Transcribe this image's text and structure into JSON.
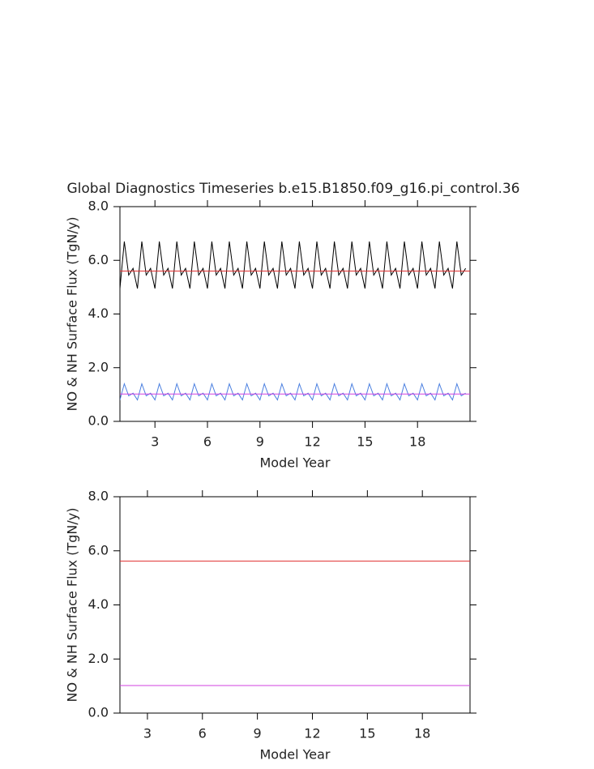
{
  "chart_data": [
    {
      "type": "line",
      "title": "Global Diagnostics Timeseries b.e15.B1850.f09_g16.pi_control.36",
      "x_label": "Model Year",
      "y_label": "NO & NH Surface Flux (TgN/y)",
      "xlim": [
        1,
        21
      ],
      "xticks": [
        3,
        6,
        9,
        12,
        15,
        18
      ],
      "ylim": [
        0,
        8
      ],
      "yticks": [
        {
          "value": 0,
          "label": "0.0"
        },
        {
          "value": 2,
          "label": "2.0"
        },
        {
          "value": 4,
          "label": "4.0"
        },
        {
          "value": 6,
          "label": "6.0"
        },
        {
          "value": 8,
          "label": "8.0"
        }
      ],
      "x": [
        1,
        1.25,
        1.5,
        1.75,
        2,
        2.25,
        2.5,
        2.75,
        3,
        3.25,
        3.5,
        3.75,
        4,
        4.25,
        4.5,
        4.75,
        5,
        5.25,
        5.5,
        5.75,
        6,
        6.25,
        6.5,
        6.75,
        7,
        7.25,
        7.5,
        7.75,
        8,
        8.25,
        8.5,
        8.75,
        9,
        9.25,
        9.5,
        9.75,
        10,
        10.25,
        10.5,
        10.75,
        11,
        11.25,
        11.5,
        11.75,
        12,
        12.25,
        12.5,
        12.75,
        13,
        13.25,
        13.5,
        13.75,
        14,
        14.25,
        14.5,
        14.75,
        15,
        15.25,
        15.5,
        15.75,
        16,
        16.25,
        16.5,
        16.75,
        17,
        17.25,
        17.5,
        17.75,
        18,
        18.25,
        18.5,
        18.75,
        19,
        19.25,
        19.5,
        19.75,
        20,
        20.25,
        20.5,
        20.75
      ],
      "series": [
        {
          "color": "#000000",
          "values": [
            4.95,
            6.7,
            5.45,
            5.7,
            4.95,
            6.7,
            5.45,
            5.7,
            4.95,
            6.7,
            5.45,
            5.7,
            4.95,
            6.7,
            5.45,
            5.7,
            4.95,
            6.7,
            5.45,
            5.7,
            4.95,
            6.7,
            5.45,
            5.7,
            4.95,
            6.7,
            5.45,
            5.7,
            4.95,
            6.7,
            5.45,
            5.7,
            4.95,
            6.7,
            5.45,
            5.7,
            4.95,
            6.7,
            5.45,
            5.7,
            4.95,
            6.7,
            5.45,
            5.7,
            4.95,
            6.7,
            5.45,
            5.7,
            4.95,
            6.7,
            5.45,
            5.7,
            4.95,
            6.7,
            5.45,
            5.7,
            4.95,
            6.7,
            5.45,
            5.7,
            4.95,
            6.7,
            5.45,
            5.7,
            4.95,
            6.7,
            5.45,
            5.7,
            4.95,
            6.7,
            5.45,
            5.7,
            4.95,
            6.7,
            5.45,
            5.7,
            4.95,
            6.7,
            5.45,
            5.7
          ]
        },
        {
          "color": "#4a7fe0",
          "values": [
            0.8,
            1.4,
            0.95,
            1.05,
            0.8,
            1.4,
            0.95,
            1.05,
            0.8,
            1.4,
            0.95,
            1.05,
            0.8,
            1.4,
            0.95,
            1.05,
            0.8,
            1.4,
            0.95,
            1.05,
            0.8,
            1.4,
            0.95,
            1.05,
            0.8,
            1.4,
            0.95,
            1.05,
            0.8,
            1.4,
            0.95,
            1.05,
            0.8,
            1.4,
            0.95,
            1.05,
            0.8,
            1.4,
            0.95,
            1.05,
            0.8,
            1.4,
            0.95,
            1.05,
            0.8,
            1.4,
            0.95,
            1.05,
            0.8,
            1.4,
            0.95,
            1.05,
            0.8,
            1.4,
            0.95,
            1.05,
            0.8,
            1.4,
            0.95,
            1.05,
            0.8,
            1.4,
            0.95,
            1.05,
            0.8,
            1.4,
            0.95,
            1.05,
            0.8,
            1.4,
            0.95,
            1.05,
            0.8,
            1.4,
            0.95,
            1.05,
            0.8,
            1.4,
            0.95,
            1.05
          ]
        },
        {
          "color": "#e03030",
          "x": [
            1,
            21
          ],
          "values": [
            5.6,
            5.6
          ]
        },
        {
          "color": "#d040e0",
          "x": [
            1,
            21
          ],
          "values": [
            1.02,
            1.02
          ]
        }
      ]
    },
    {
      "type": "line",
      "x_label": "Model Year",
      "y_label": "NO & NH Surface Flux (TgN/y)",
      "xlim": [
        1.5,
        20.6
      ],
      "xticks": [
        3,
        6,
        9,
        12,
        15,
        18
      ],
      "ylim": [
        0,
        8
      ],
      "yticks": [
        {
          "value": 0,
          "label": "0.0"
        },
        {
          "value": 2,
          "label": "2.0"
        },
        {
          "value": 4,
          "label": "4.0"
        },
        {
          "value": 6,
          "label": "6.0"
        },
        {
          "value": 8,
          "label": "8.0"
        }
      ],
      "series": [
        {
          "color": "#e03030",
          "x": [
            1.5,
            20.6
          ],
          "values": [
            5.62,
            5.62
          ]
        },
        {
          "color": "#d040e0",
          "x": [
            1.5,
            20.6
          ],
          "values": [
            1.02,
            1.02
          ]
        }
      ]
    }
  ]
}
